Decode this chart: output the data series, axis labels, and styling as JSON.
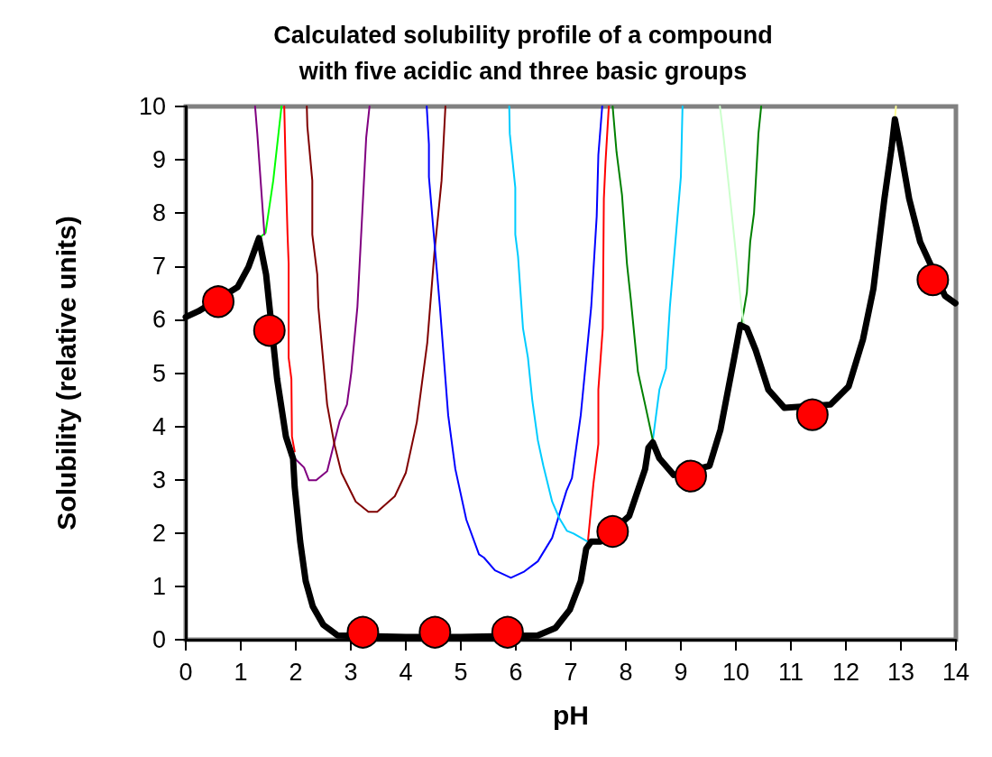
{
  "chart_data": {
    "type": "line",
    "title": "Calculated solubility profile of a compound\nwith five acidic and three basic groups",
    "xlabel": "pH",
    "ylabel": "Solubility (relative units)",
    "xlim": [
      0,
      14
    ],
    "xticks": [
      0,
      1,
      2,
      3,
      4,
      5,
      6,
      7,
      8,
      9,
      10,
      11,
      12,
      13,
      14
    ],
    "ylim": [
      0,
      10
    ],
    "yticks": [
      0,
      1,
      2,
      3,
      4,
      5,
      6,
      7,
      8,
      9,
      10
    ],
    "grid": false,
    "line_style": "solid",
    "marker": "none",
    "series": [
      {
        "color": "#000000",
        "x": [
          0,
          0.23,
          0.94,
          1.14,
          1.33,
          1.46,
          1.66,
          1.82,
          1.95,
          1.98,
          2.08,
          2.18,
          2.31,
          2.5,
          2.76,
          4.0,
          5.0,
          6.4,
          6.72,
          6.98,
          7.18,
          7.28,
          7.37,
          7.54,
          8.06,
          8.35,
          8.41,
          8.49,
          8.61,
          8.87,
          9.52,
          9.72,
          9.77,
          9.97,
          10.08,
          10.2,
          10.36,
          10.59,
          10.88,
          11.72,
          12.05,
          12.31,
          12.5,
          12.7,
          12.83,
          12.89,
          12.99,
          13.15,
          13.35,
          13.8,
          13.99
        ],
        "values": [
          6.05,
          6.16,
          6.61,
          6.99,
          7.53,
          6.85,
          4.89,
          3.81,
          3.4,
          2.86,
          1.84,
          1.1,
          0.62,
          0.28,
          0.08,
          0.05,
          0.05,
          0.08,
          0.22,
          0.56,
          1.1,
          1.71,
          1.84,
          1.84,
          2.32,
          3.2,
          3.6,
          3.7,
          3.4,
          3.09,
          3.26,
          3.94,
          4.21,
          5.29,
          5.9,
          5.84,
          5.43,
          4.69,
          4.35,
          4.41,
          4.75,
          5.63,
          6.58,
          8.27,
          9.22,
          9.76,
          9.22,
          8.27,
          7.46,
          6.45,
          6.31
        ]
      },
      {
        "color": "#00ff00",
        "x": [
          1.33,
          1.45,
          1.59,
          1.74
        ],
        "values": [
          7.53,
          7.63,
          8.61,
          10
        ]
      },
      {
        "color": "#800080",
        "x": [
          1.26,
          1.3,
          1.43,
          1.7,
          1.98,
          2.15,
          2.24,
          2.37,
          2.57,
          2.8,
          2.93,
          3.01,
          3.12,
          3.28,
          3.34
        ],
        "values": [
          10,
          9.49,
          7.6,
          null,
          3.4,
          3.23,
          2.99,
          2.99,
          3.16,
          4.11,
          4.41,
          5.02,
          6.24,
          9.42,
          10
        ]
      },
      {
        "color": "#ff0000",
        "x": [
          1.79,
          1.82,
          1.85,
          1.87,
          1.87,
          1.92,
          1.93,
          1.98,
          4.5,
          7.31,
          7.41,
          7.5,
          7.5,
          7.58,
          7.6,
          7.63,
          7.69
        ],
        "values": [
          10,
          8.68,
          7.6,
          7.05,
          5.29,
          4.89,
          3.81,
          3.53,
          null,
          1.84,
          2.92,
          3.67,
          4.69,
          5.84,
          8.27,
          8.95,
          10
        ]
      },
      {
        "color": "#800000",
        "x": [
          2.2,
          2.21,
          2.3,
          2.3,
          2.39,
          2.41,
          2.57,
          2.7,
          2.83,
          3.09,
          3.32,
          3.48,
          3.8,
          4.0,
          4.2,
          4.39,
          4.52,
          4.65,
          4.72
        ],
        "values": [
          10,
          9.63,
          8.61,
          7.6,
          6.85,
          6.24,
          4.41,
          3.67,
          3.13,
          2.59,
          2.4,
          2.4,
          2.69,
          3.13,
          4.08,
          5.57,
          7.26,
          8.61,
          10
        ]
      },
      {
        "color": "#0000ff",
        "x": [
          4.38,
          4.42,
          4.42,
          4.52,
          4.62,
          4.77,
          4.9,
          5.1,
          5.33,
          5.42,
          5.62,
          5.91,
          6.14,
          6.4,
          6.66,
          6.92,
          7.02,
          7.18,
          7.37,
          7.47,
          7.5,
          7.57
        ],
        "values": [
          10,
          9.29,
          8.68,
          7.46,
          6.24,
          4.21,
          3.2,
          2.25,
          1.6,
          1.54,
          1.3,
          1.16,
          1.27,
          1.47,
          1.91,
          2.79,
          3.03,
          4.21,
          6.24,
          7.94,
          9.09,
          10
        ]
      },
      {
        "color": "#00ccff",
        "x": [
          5.88,
          5.89,
          5.99,
          5.99,
          6.04,
          6.13,
          6.22,
          6.3,
          6.4,
          6.5,
          6.66,
          6.79,
          6.93,
          7.05,
          7.31,
          7.9,
          8.49,
          8.61,
          8.73,
          8.8,
          9.0,
          9.03
        ],
        "values": [
          10,
          9.49,
          8.48,
          7.6,
          7.19,
          5.84,
          5.29,
          4.48,
          3.74,
          3.26,
          2.59,
          2.28,
          2.04,
          1.99,
          1.84,
          null,
          3.74,
          4.69,
          5.09,
          6.24,
          8.68,
          10
        ]
      },
      {
        "color": "#008000",
        "x": [
          7.76,
          7.83,
          7.93,
          8.02,
          8.09,
          8.22,
          8.35,
          8.49,
          9.3,
          10.1,
          10.2,
          10.26,
          10.33,
          10.41,
          10.46
        ],
        "values": [
          10,
          9.15,
          8.34,
          7.05,
          6.38,
          5.02,
          4.41,
          3.74,
          null,
          5.9,
          6.51,
          7.46,
          8.0,
          9.49,
          10
        ]
      },
      {
        "color": "#ccffcc",
        "x": [
          9.71,
          9.77,
          9.93,
          10.1,
          10.15
        ],
        "values": [
          10,
          9.49,
          7.94,
          6.24,
          5.9
        ]
      },
      {
        "color": "#ffff99",
        "x": [
          12.89,
          12.91
        ],
        "values": [
          9.76,
          10
        ]
      },
      {
        "type": "scatter",
        "marker": "circle",
        "color": "#ff0000",
        "x": [
          0.59,
          1.52,
          3.22,
          4.53,
          5.85,
          7.76,
          9.18,
          11.39,
          13.58
        ],
        "values": [
          6.34,
          5.8,
          0.14,
          0.14,
          0.14,
          2.03,
          3.07,
          4.22,
          6.75
        ]
      }
    ]
  }
}
